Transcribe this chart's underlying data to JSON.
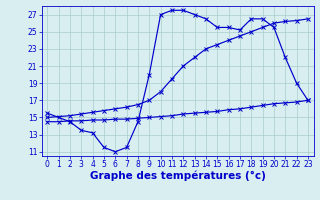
{
  "title": "Graphe des températures (°c)",
  "bg_color": "#d8eef0",
  "grid_color": "#aacccc",
  "line_color": "#0000cc",
  "xlim": [
    -0.5,
    23.5
  ],
  "ylim": [
    10.5,
    28.0
  ],
  "xticks": [
    0,
    1,
    2,
    3,
    4,
    5,
    6,
    7,
    8,
    9,
    10,
    11,
    12,
    13,
    14,
    15,
    16,
    17,
    18,
    19,
    20,
    21,
    22,
    23
  ],
  "yticks": [
    11,
    13,
    15,
    17,
    19,
    21,
    23,
    25,
    27
  ],
  "curve1_x": [
    0,
    1,
    2,
    3,
    4,
    5,
    6,
    7,
    8,
    9,
    10,
    11,
    12,
    13,
    14,
    15,
    16,
    17,
    18,
    19,
    20,
    21,
    22,
    23
  ],
  "curve1_y": [
    15.5,
    15.0,
    14.5,
    13.5,
    13.2,
    11.5,
    11.0,
    11.5,
    14.5,
    20.0,
    27.0,
    27.5,
    27.5,
    27.0,
    26.5,
    25.5,
    25.5,
    25.2,
    26.5,
    26.5,
    25.5,
    22.0,
    19.0,
    17.0
  ],
  "curve2_x": [
    0,
    2,
    3,
    4,
    5,
    6,
    7,
    8,
    9,
    10,
    11,
    12,
    13,
    14,
    15,
    16,
    17,
    18,
    19,
    20,
    21,
    22,
    23
  ],
  "curve2_y": [
    15.0,
    15.2,
    15.4,
    15.6,
    15.8,
    16.0,
    16.2,
    16.5,
    17.0,
    18.0,
    19.5,
    21.0,
    22.0,
    23.0,
    23.5,
    24.0,
    24.5,
    25.0,
    25.5,
    26.0,
    26.2,
    26.3,
    26.5
  ],
  "curve3_x": [
    0,
    1,
    2,
    3,
    4,
    5,
    6,
    7,
    8,
    9,
    10,
    11,
    12,
    13,
    14,
    15,
    16,
    17,
    18,
    19,
    20,
    21,
    22,
    23
  ],
  "curve3_y": [
    14.5,
    14.5,
    14.6,
    14.6,
    14.7,
    14.7,
    14.8,
    14.8,
    14.9,
    15.0,
    15.1,
    15.2,
    15.4,
    15.5,
    15.6,
    15.7,
    15.9,
    16.0,
    16.2,
    16.4,
    16.6,
    16.7,
    16.8,
    17.0
  ],
  "xlabel_color": "#0000cc",
  "tick_fontsize": 5.5,
  "xlabel_fontsize": 7.5,
  "figsize": [
    3.2,
    2.0
  ],
  "dpi": 100
}
